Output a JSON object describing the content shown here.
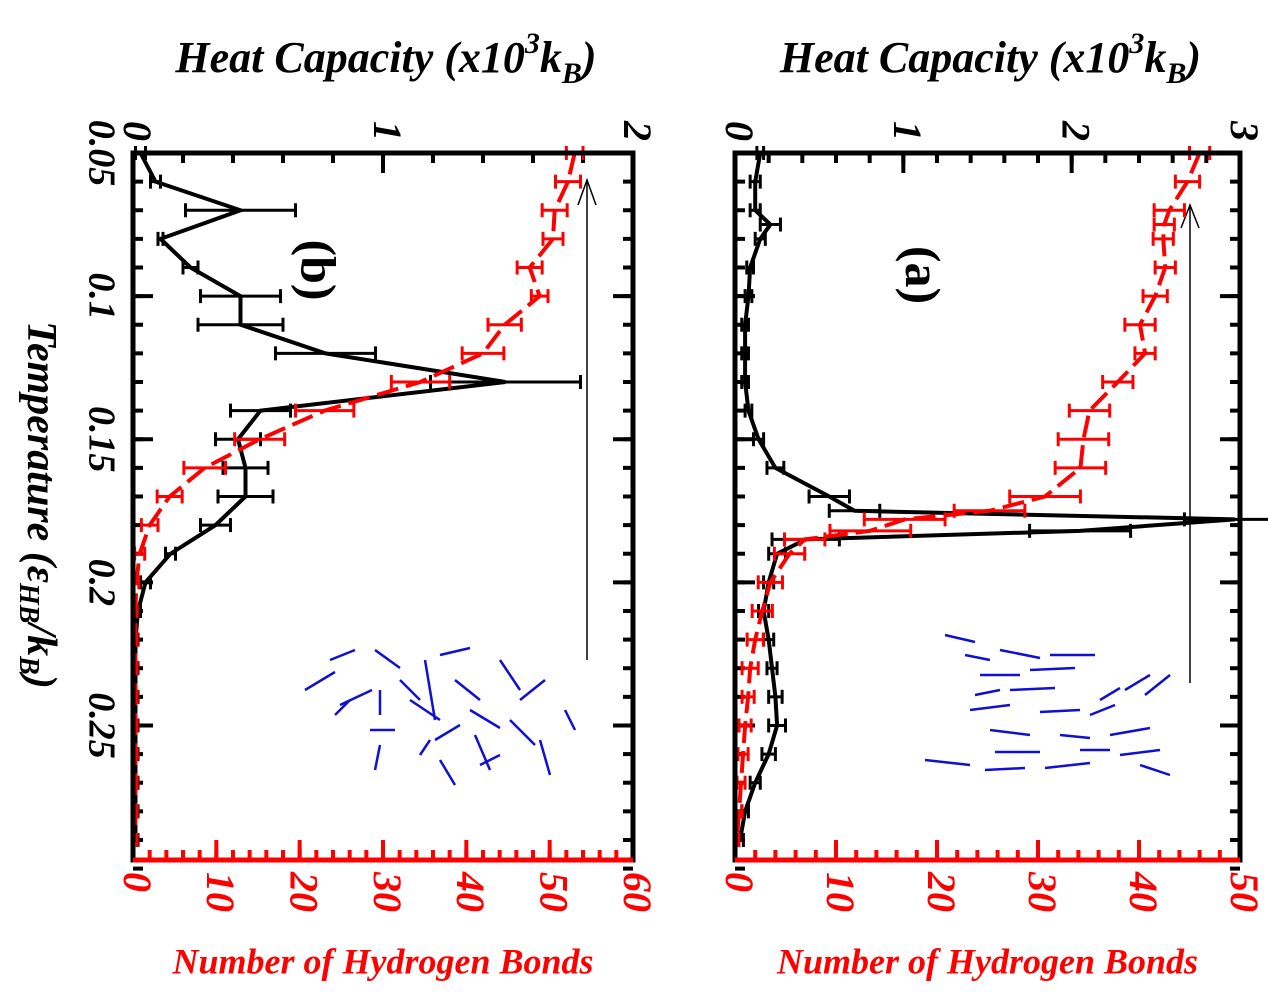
{
  "chart_data": [
    {
      "type": "line",
      "title": "(b)",
      "top_label": [
        "Heat Capacity (x10",
        "3",
        "k",
        "B",
        ")"
      ],
      "bottom_label": "Number of Hydrogen Bonds",
      "side_label": [
        "Temperature (ε",
        "HB",
        "/k",
        "B",
        ")"
      ],
      "x": [
        0.05,
        0.06,
        0.07,
        0.08,
        0.09,
        0.1,
        0.11,
        0.12,
        0.13,
        0.14,
        0.15,
        0.16,
        0.17,
        0.18,
        0.19,
        0.2,
        0.21,
        0.22,
        0.23,
        0.24,
        0.25,
        0.26,
        0.27,
        0.28,
        0.29
      ],
      "xlim": [
        0.05,
        0.297
      ],
      "xticks": [
        0.05,
        0.1,
        0.15,
        0.2,
        0.25
      ],
      "xminor": 0.01,
      "show_xtick_labels": true,
      "ylim": [
        0,
        2
      ],
      "yticks": [
        0,
        1,
        2
      ],
      "yminor": 0.2,
      "y2lim": [
        0,
        60
      ],
      "y2ticks": [
        0,
        10,
        20,
        30,
        40,
        50,
        60
      ],
      "y2minor": 2,
      "series": [
        {
          "color": "#000000",
          "dashed": false,
          "values": [
            0.03,
            0.09,
            0.43,
            0.11,
            0.23,
            0.43,
            0.43,
            0.77,
            1.49,
            0.51,
            0.42,
            0.45,
            0.45,
            0.33,
            0.15,
            0.05,
            0.02,
            0.01,
            0.01,
            0.01,
            0.01,
            0.01,
            0.01,
            0.01,
            0.01
          ],
          "errors": [
            0.02,
            0.02,
            0.22,
            0.01,
            0.03,
            0.16,
            0.17,
            0.2,
            0.3,
            0.12,
            0.09,
            0.09,
            0.11,
            0.06,
            0.02,
            0.02,
            0.01,
            0.01,
            0.01,
            0.01,
            0.01,
            0.01,
            0.01,
            0.01,
            0.01
          ]
        },
        {
          "color": "#ff0000",
          "dashed": true,
          "axis": "y2",
          "values": [
            53,
            52.2,
            50.6,
            50.4,
            47.6,
            48.8,
            44.6,
            42,
            34.5,
            23,
            15.2,
            8.6,
            4.4,
            2,
            0.8,
            0.4,
            0.3,
            0.3,
            0.3,
            0.3,
            0.3,
            0.3,
            0.3,
            0.3,
            0.3
          ],
          "errors": [
            1,
            1.5,
            1.5,
            1.2,
            1.5,
            1,
            2,
            2.5,
            3.5,
            3.5,
            3,
            2.5,
            1.5,
            1,
            0.6,
            0.3,
            0.2,
            0.2,
            0.2,
            0.2,
            0.2,
            0.2,
            0.2,
            0.2,
            0.2
          ]
        }
      ]
    },
    {
      "type": "line",
      "title": "(a)",
      "top_label": [
        "Heat Capacity (x10",
        "3",
        "k",
        "B",
        ")"
      ],
      "bottom_label": "Number of Hydrogen Bonds",
      "x": [
        0.05,
        0.06,
        0.07,
        0.075,
        0.08,
        0.09,
        0.1,
        0.11,
        0.12,
        0.13,
        0.14,
        0.15,
        0.16,
        0.17,
        0.175,
        0.178,
        0.182,
        0.185,
        0.19,
        0.2,
        0.21,
        0.22,
        0.23,
        0.24,
        0.25,
        0.26,
        0.27,
        0.28,
        0.29
      ],
      "xlim": [
        0.05,
        0.297
      ],
      "xticks": [
        0.05,
        0.1,
        0.15,
        0.2,
        0.25
      ],
      "xminor": 0.01,
      "show_xtick_labels": false,
      "ylim": [
        0,
        3
      ],
      "yticks": [
        0,
        1,
        2,
        3
      ],
      "yminor": 0.2,
      "y2lim": [
        0,
        50
      ],
      "y2ticks": [
        0,
        10,
        20,
        30,
        40,
        50
      ],
      "y2minor": 2,
      "series": [
        {
          "color": "#000000",
          "dashed": false,
          "values": [
            0.15,
            0.12,
            0.12,
            0.21,
            0.15,
            0.09,
            0.08,
            0.06,
            0.06,
            0.06,
            0.08,
            0.14,
            0.24,
            0.56,
            0.71,
            2.97,
            2.05,
            0.42,
            0.25,
            0.2,
            0.17,
            0.2,
            0.22,
            0.24,
            0.25,
            0.2,
            0.12,
            0.06,
            0.03
          ],
          "errors": [
            0.02,
            0.03,
            0.03,
            0.06,
            0.03,
            0.02,
            0.02,
            0.02,
            0.02,
            0.02,
            0.02,
            0.03,
            0.05,
            0.12,
            0.15,
            0.3,
            0.3,
            0.2,
            0.05,
            0.03,
            0.03,
            0.03,
            0.03,
            0.04,
            0.05,
            0.04,
            0.03,
            0.02,
            0.02
          ]
        },
        {
          "color": "#ff0000",
          "dashed": true,
          "axis": "y2",
          "values": [
            46,
            44.8,
            43,
            42.5,
            42.4,
            42.6,
            41.6,
            40.1,
            40.6,
            37.9,
            35.1,
            34.5,
            34.2,
            30.7,
            25.2,
            16.8,
            13.4,
            6.9,
            5.4,
            3.5,
            2.7,
            2,
            1.5,
            1.3,
            1,
            0.8,
            0.6,
            0.4,
            0.2
          ],
          "errors": [
            1,
            1.2,
            1.5,
            1,
            1,
            1,
            1.2,
            1.5,
            1,
            1.5,
            2,
            2.5,
            2.5,
            3.5,
            3.5,
            4,
            4,
            2,
            1.5,
            1.2,
            1,
            0.8,
            0.8,
            0.6,
            0.6,
            0.5,
            0.4,
            0.3,
            0.2
          ]
        }
      ]
    }
  ]
}
